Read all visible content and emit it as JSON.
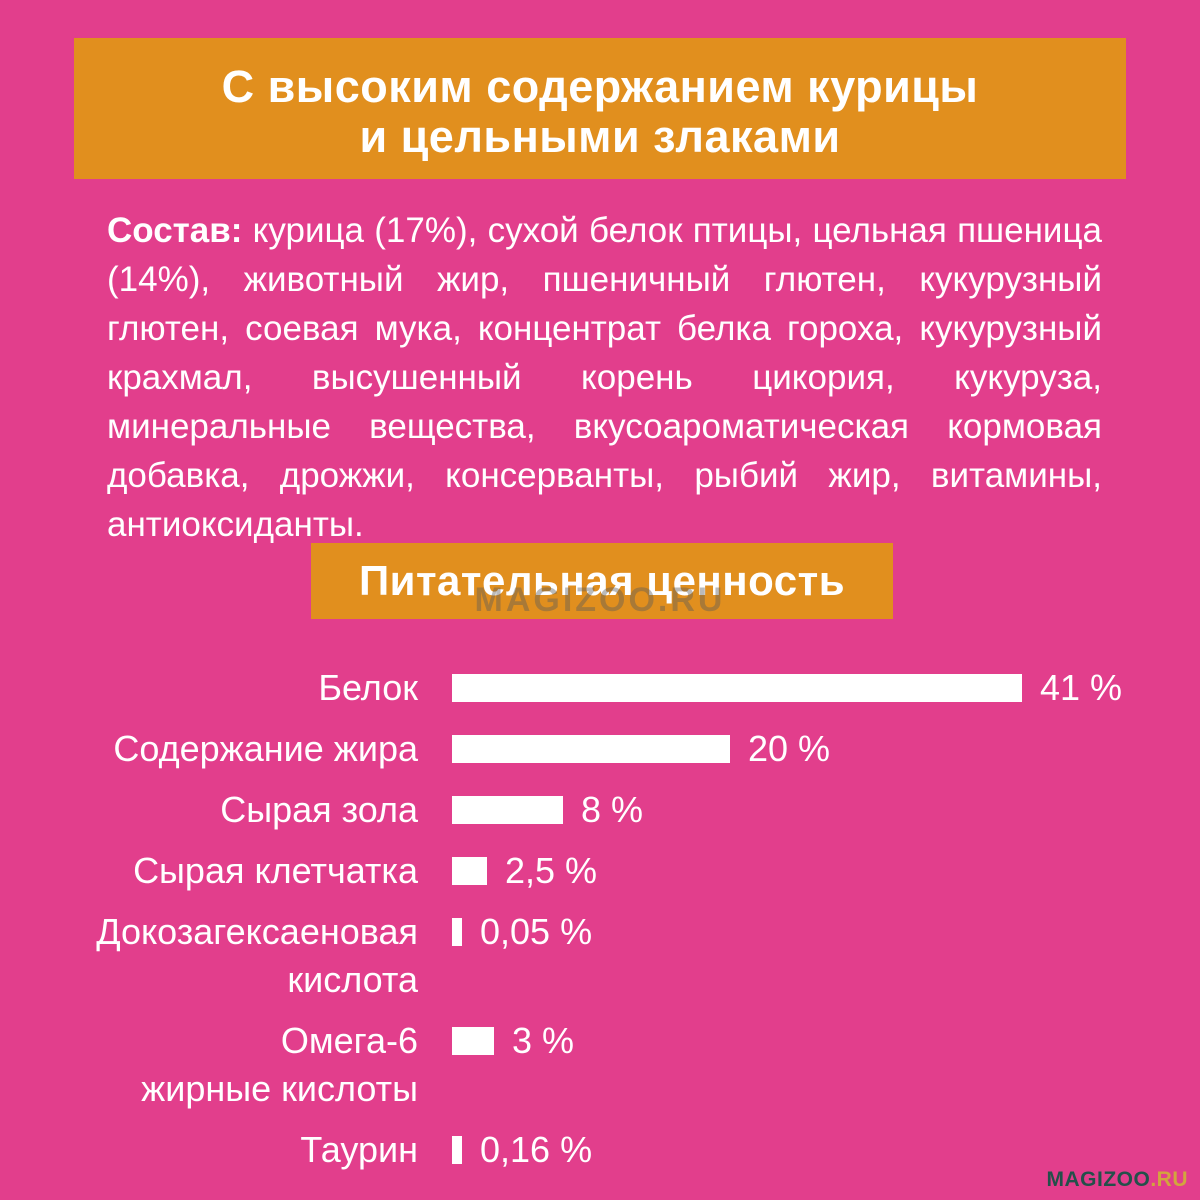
{
  "page": {
    "background_color": "#E23E8C",
    "accent_color": "#E18F1E",
    "text_color": "#FFFFFF"
  },
  "header_banner": {
    "line1": "С высоким содержанием курицы",
    "line2": "и цельными злаками"
  },
  "composition": {
    "label": "Состав:",
    "text": " курица (17%), сухой белок птицы, цельная пшеница (14%), животный жир, пшеничный глютен, кукурузный глютен, соевая мука, концентрат белка гороха, кукурузный крахмал, высушенный корень цикория, кукуруза, минеральные вещества, вкусоароматическая кормовая добавка, дрожжи, консерванты, рыбий жир, витамины, антиоксиданты."
  },
  "section_banner": {
    "title": "Питательная ценность"
  },
  "watermark_center": "MAGIZOO.RU",
  "corner_logo": {
    "name": "MAGIZOO",
    "tld": ".RU",
    "name_color": "#23504A",
    "tld_color": "#D2A53E"
  },
  "chart_data": {
    "type": "bar",
    "orientation": "horizontal",
    "title": "Питательная ценность",
    "unit": "%",
    "bar_color": "#FFFFFF",
    "xlim": [
      0,
      41
    ],
    "grid": false,
    "legend": false,
    "categories": [
      "Белок",
      "Содержание жира",
      "Сырая зола",
      "Сырая клетчатка",
      "Докозагексаеновая кислота",
      "Омега-6 жирные кислоты",
      "Таурин"
    ],
    "values": [
      41,
      20,
      8,
      2.5,
      0.05,
      3,
      0.16
    ],
    "value_labels": [
      "41 %",
      "20 %",
      "8 %",
      "2,5 %",
      "0,05 %",
      "3 %",
      "0,16 %"
    ],
    "label_lines": [
      [
        "Белок"
      ],
      [
        "Содержание жира"
      ],
      [
        "Сырая зола"
      ],
      [
        "Сырая клетчатка"
      ],
      [
        "Докозагексаеновая",
        "кислота"
      ],
      [
        "Омега-6",
        "жирные кислоты"
      ],
      [
        "Таурин"
      ]
    ]
  }
}
